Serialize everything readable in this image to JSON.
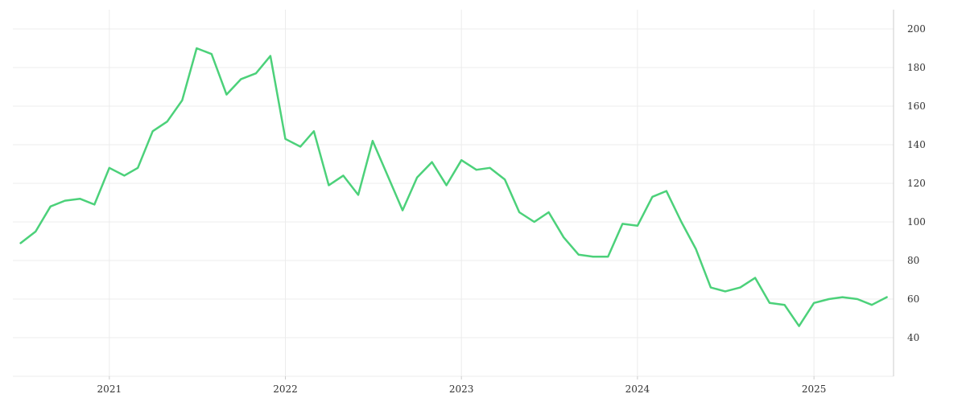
{
  "chart_data": {
    "type": "line",
    "title": "",
    "xlabel": "",
    "ylabel": "",
    "x_tick_labels": [
      "2021",
      "2022",
      "2023",
      "2024",
      "2025"
    ],
    "y_tick_labels": [
      "40",
      "60",
      "80",
      "100",
      "120",
      "140",
      "160",
      "180",
      "200"
    ],
    "ylim": [
      20,
      210
    ],
    "xlim": [
      "2020-06-15",
      "2025-06-15"
    ],
    "grid": true,
    "y_axis_position": "right",
    "colors": {
      "series": "#4cd17a",
      "grid": "#ececec",
      "axis": "#cccccc",
      "text": "#333333"
    },
    "series": [
      {
        "x": [
          "2020-07",
          "2020-08",
          "2020-09",
          "2020-10",
          "2020-11",
          "2020-12",
          "2021-01",
          "2021-02",
          "2021-03",
          "2021-04",
          "2021-05",
          "2021-06",
          "2021-07",
          "2021-08",
          "2021-09",
          "2021-10",
          "2021-11",
          "2021-12",
          "2022-01",
          "2022-02",
          "2022-03",
          "2022-04",
          "2022-05",
          "2022-06",
          "2022-07",
          "2022-08",
          "2022-09",
          "2022-10",
          "2022-11",
          "2022-12",
          "2023-01",
          "2023-02",
          "2023-03",
          "2023-04",
          "2023-05",
          "2023-06",
          "2023-07",
          "2023-08",
          "2023-09",
          "2023-10",
          "2023-11",
          "2023-12",
          "2024-01",
          "2024-02",
          "2024-03",
          "2024-04",
          "2024-05",
          "2024-06",
          "2024-07",
          "2024-08",
          "2024-09",
          "2024-10",
          "2024-11",
          "2024-12",
          "2025-01",
          "2025-02",
          "2025-03",
          "2025-04",
          "2025-05",
          "2025-06"
        ],
        "values": [
          89,
          95,
          108,
          111,
          112,
          109,
          128,
          124,
          128,
          147,
          152,
          163,
          190,
          187,
          166,
          174,
          177,
          186,
          143,
          139,
          147,
          119,
          124,
          114,
          142,
          124,
          106,
          123,
          131,
          119,
          132,
          127,
          128,
          122,
          105,
          100,
          105,
          92,
          83,
          82,
          82,
          99,
          98,
          113,
          116,
          100,
          86,
          66,
          64,
          66,
          71,
          58,
          57,
          46,
          58,
          60,
          61,
          60,
          57,
          61
        ]
      }
    ]
  }
}
